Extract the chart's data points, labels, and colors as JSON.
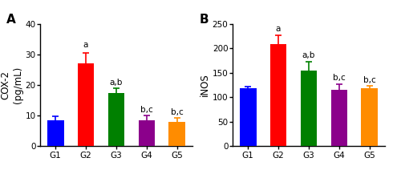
{
  "chart_A": {
    "title": "A",
    "ylabel": "COX-2\n(pg/mL)",
    "categories": [
      "G1",
      "G2",
      "G3",
      "G4",
      "G5"
    ],
    "values": [
      8.5,
      27.0,
      17.5,
      8.5,
      8.0
    ],
    "errors": [
      1.2,
      3.5,
      1.5,
      1.5,
      1.3
    ],
    "colors": [
      "#0000FF",
      "#FF0000",
      "#008000",
      "#8B008B",
      "#FF8C00"
    ],
    "ylim": [
      0,
      40
    ],
    "yticks": [
      0,
      10,
      20,
      30,
      40
    ],
    "significance": [
      "",
      "a",
      "a,b",
      "b,c",
      "b,c"
    ],
    "sig_offsets": [
      0,
      1.2,
      0.5,
      0.5,
      0.5
    ]
  },
  "chart_B": {
    "title": "B",
    "ylabel": "iNOS",
    "categories": [
      "G1",
      "G2",
      "G3",
      "G4",
      "G5"
    ],
    "values": [
      118.0,
      208.0,
      154.0,
      115.0,
      118.0
    ],
    "errors": [
      4.0,
      18.0,
      18.0,
      12.0,
      5.0
    ],
    "colors": [
      "#0000FF",
      "#FF0000",
      "#008000",
      "#8B008B",
      "#FF8C00"
    ],
    "ylim": [
      0,
      250
    ],
    "yticks": [
      0,
      50,
      100,
      150,
      200,
      250
    ],
    "significance": [
      "",
      "a",
      "a,b",
      "b,c",
      "b,c"
    ],
    "sig_offsets": [
      0,
      5,
      5,
      5,
      3
    ]
  },
  "error_capsize": 3,
  "bar_width": 0.55,
  "sig_fontsize": 7.5,
  "tick_fontsize": 7.5,
  "label_fontsize": 8.5
}
